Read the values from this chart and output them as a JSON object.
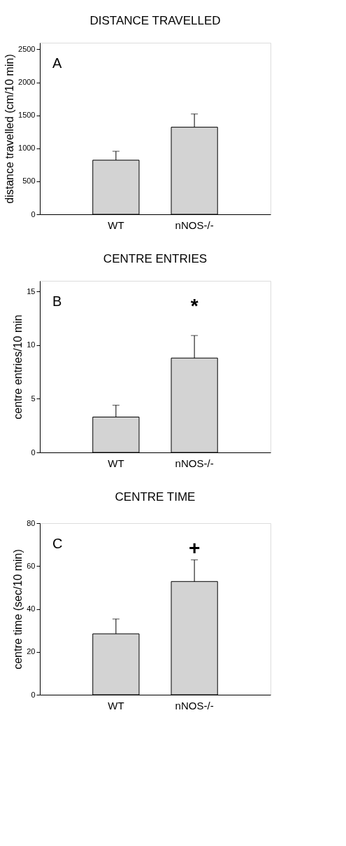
{
  "chart_data": [
    {
      "type": "bar",
      "title": "DISTANCE TRAVELLED",
      "ylabel": "distance travelled (cm/10 min)",
      "categories": [
        "WT",
        "nNOS-/-"
      ],
      "values": [
        820,
        1320
      ],
      "color": "#d3d3d3",
      "errors": [
        [
          820,
          955
        ],
        [
          1320,
          1520
        ]
      ],
      "ylim": [
        0,
        2600
      ],
      "yticks": [
        0,
        500,
        1000,
        1500,
        2000,
        2500
      ],
      "annotations": [
        "A"
      ]
    },
    {
      "type": "bar",
      "title": "CENTRE ENTRIES",
      "ylabel": "centre entries/10 min",
      "categories": [
        "WT",
        "nNOS-/-"
      ],
      "values": [
        3.3,
        8.8
      ],
      "color": "#d3d3d3",
      "errors": [
        [
          3.3,
          4.4
        ],
        [
          8.8,
          10.9
        ]
      ],
      "ylim": [
        0,
        16
      ],
      "yticks": [
        0,
        5,
        10,
        15
      ],
      "annotations": [
        "B",
        "*"
      ]
    },
    {
      "type": "bar",
      "title": "CENTRE TIME",
      "ylabel": "centre time (sec/10 min)",
      "categories": [
        "WT",
        "nNOS-/-"
      ],
      "values": [
        28.4,
        52.8
      ],
      "color": "#d3d3d3",
      "errors": [
        [
          28.4,
          35.3
        ],
        [
          52.8,
          62.9
        ]
      ],
      "ylim": [
        0,
        80
      ],
      "yticks": [
        0,
        20,
        40,
        60,
        80
      ],
      "annotations": [
        "C",
        "+"
      ]
    }
  ]
}
